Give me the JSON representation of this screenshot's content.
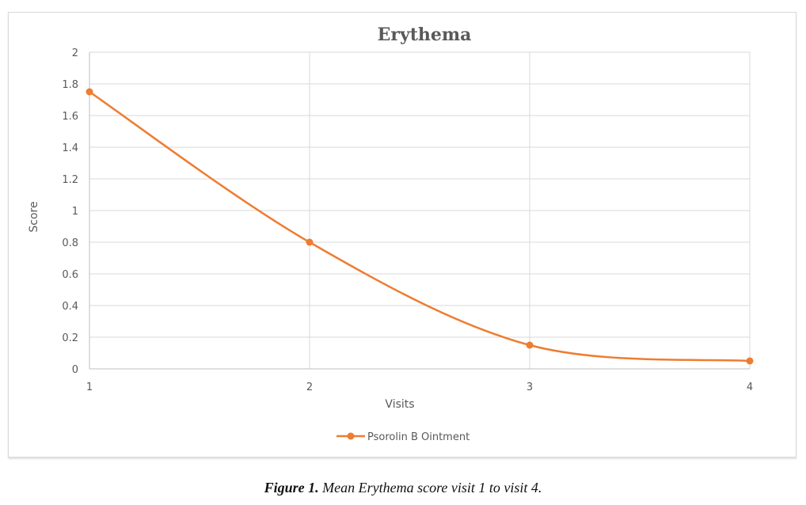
{
  "chart_data": {
    "type": "line",
    "title": "Erythema",
    "xlabel": "Visits",
    "ylabel": "Score",
    "x": [
      1,
      2,
      3,
      4
    ],
    "x_tick_labels": [
      "1",
      "2",
      "3",
      "4"
    ],
    "y_tick_labels": [
      "0",
      "0.2",
      "0.4",
      "0.6",
      "0.8",
      "1",
      "1.2",
      "1.4",
      "1.6",
      "1.8",
      "2"
    ],
    "ylim": [
      0,
      2
    ],
    "series": [
      {
        "name": "Psorolin B Ointment",
        "values": [
          1.75,
          0.8,
          0.15,
          0.05
        ],
        "color": "#ed7d31"
      }
    ],
    "grid": true,
    "smooth": true,
    "legend_position": "bottom"
  },
  "caption": {
    "label": "Figure 1.",
    "text": "Mean Erythema score visit 1 to visit 4."
  }
}
